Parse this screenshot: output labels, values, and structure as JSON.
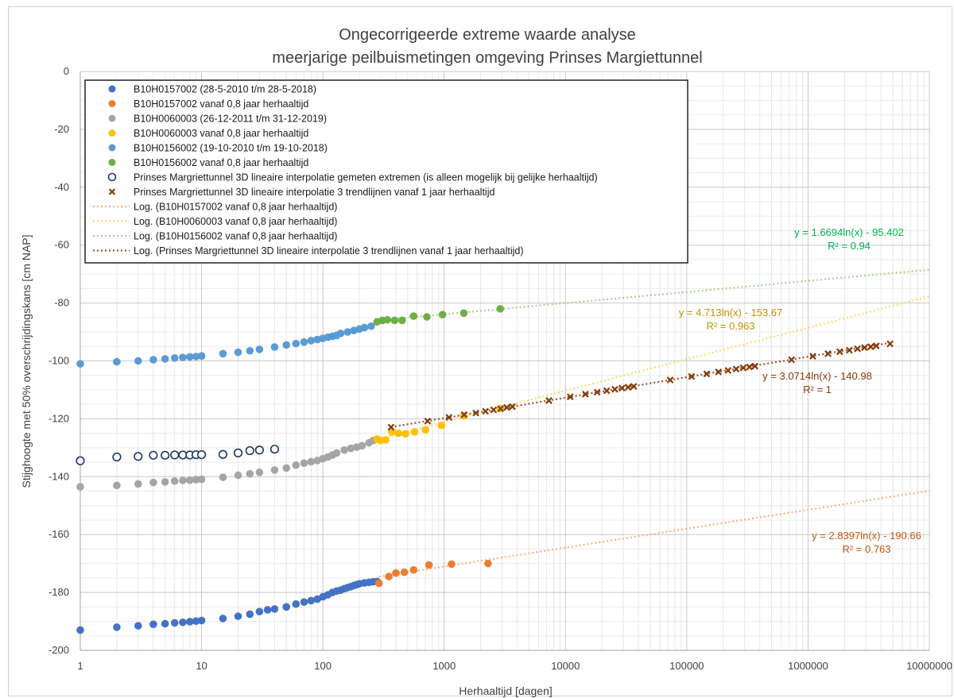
{
  "chart_data": {
    "type": "scatter",
    "title": [
      "Ongecorrigeerde extreme waarde analyse",
      "meerjarige peilbuismetingen omgeving Prinses Margiettunnel"
    ],
    "xlabel": "Herhaaltijd [dagen]",
    "ylabel": "Stijghoogte met 50% overschrijdingskans [cm NAP]",
    "x_scale": "log",
    "xlim": [
      1,
      10000000
    ],
    "ylim": [
      -200,
      0
    ],
    "x_ticks": [
      1,
      10,
      100,
      1000,
      10000,
      100000,
      1000000,
      10000000
    ],
    "x_tick_labels": [
      "1",
      "10",
      "100",
      "1000",
      "10000",
      "100000",
      "1000000",
      "10000000"
    ],
    "y_ticks": [
      0,
      -20,
      -40,
      -60,
      -80,
      -100,
      -120,
      -140,
      -160,
      -180,
      -200
    ],
    "y_tick_labels": [
      "0",
      "-20",
      "-40",
      "-60",
      "-80",
      "-100",
      "-120",
      "-140",
      "-160",
      "-180",
      "-200"
    ],
    "grid": true,
    "legend_position": "top-left",
    "series": [
      {
        "name": "B10H0157002  (28-5-2010 t/m 28-5-2018)",
        "marker": "filled-circle",
        "color": "#4472C4",
        "x": [
          1,
          2,
          3,
          4,
          5,
          6,
          7,
          8,
          9,
          10,
          15,
          20,
          25,
          30,
          35,
          40,
          50,
          60,
          70,
          80,
          90,
          100,
          110,
          120,
          130,
          140,
          150,
          160,
          170,
          180,
          190,
          200,
          220,
          240,
          260,
          280
        ],
        "y": [
          -193,
          -192,
          -191.5,
          -191,
          -190.8,
          -190.5,
          -190.3,
          -190.1,
          -189.9,
          -189.7,
          -189,
          -188.2,
          -187.5,
          -186.6,
          -186,
          -185.7,
          -185,
          -184,
          -183.3,
          -182.8,
          -182.3,
          -181.5,
          -180.8,
          -180,
          -179.5,
          -179.2,
          -178.7,
          -178.3,
          -178,
          -177.6,
          -177.3,
          -177,
          -176.7,
          -176.5,
          -176.3,
          -176.2
        ]
      },
      {
        "name": "B10H0157002 vanaf 0,8 jaar herhaaltijd",
        "marker": "filled-circle",
        "color": "#ED7D31",
        "x": [
          290,
          350,
          400,
          470,
          560,
          750,
          1150,
          2300
        ],
        "y": [
          -176.8,
          -174.5,
          -173.3,
          -173,
          -172.2,
          -170.5,
          -170.2,
          -170
        ]
      },
      {
        "name": "B10H0060003  (26-12-2011 t/m 31-12-2019)",
        "marker": "filled-circle",
        "color": "#A5A5A5",
        "x": [
          1,
          2,
          3,
          4,
          5,
          6,
          7,
          8,
          9,
          10,
          15,
          20,
          25,
          30,
          40,
          50,
          60,
          70,
          80,
          90,
          100,
          110,
          120,
          130,
          150,
          170,
          190,
          210,
          240,
          260
        ],
        "y": [
          -143.5,
          -143,
          -142.5,
          -142,
          -141.8,
          -141.5,
          -141.3,
          -141.2,
          -141,
          -140.9,
          -140.2,
          -139.5,
          -139,
          -138.5,
          -137.7,
          -137,
          -136,
          -135.3,
          -134.8,
          -134.4,
          -133.8,
          -133.2,
          -132.5,
          -131.8,
          -130.8,
          -130.2,
          -129.8,
          -129.3,
          -128.3,
          -127.5
        ]
      },
      {
        "name": "B10H0060003 vanaf 0,8 jaar herhaaltijd",
        "marker": "filled-circle",
        "color": "#FFC000",
        "x": [
          280,
          300,
          330,
          370,
          420,
          480,
          570,
          700,
          950,
          1450,
          2900
        ],
        "y": [
          -127,
          -127.5,
          -127.3,
          -124.5,
          -125,
          -125.2,
          -124.5,
          -123.8,
          -122.3,
          -119,
          -116.5
        ]
      },
      {
        "name": "B10H0156002  (19-10-2010 t/m 19-10-2018)",
        "marker": "filled-circle",
        "color": "#5B9BD5",
        "x": [
          1,
          2,
          3,
          4,
          5,
          6,
          7,
          8,
          9,
          10,
          15,
          20,
          25,
          30,
          40,
          50,
          60,
          70,
          80,
          90,
          100,
          110,
          120,
          130,
          140,
          160,
          180,
          200,
          220,
          250
        ],
        "y": [
          -101,
          -100.3,
          -100,
          -99.6,
          -99.3,
          -99,
          -98.8,
          -98.6,
          -98.5,
          -98.3,
          -97.5,
          -97,
          -96.5,
          -96,
          -95.2,
          -94.5,
          -94,
          -93.5,
          -93,
          -92.6,
          -92.2,
          -91.8,
          -91.5,
          -91.2,
          -90.5,
          -90,
          -89.5,
          -89,
          -88.5,
          -88
        ]
      },
      {
        "name": "B10H0156002 vanaf 0,8 jaar herhaaltijd",
        "marker": "filled-circle",
        "color": "#70AD47",
        "x": [
          280,
          310,
          340,
          390,
          450,
          560,
          720,
          970,
          1450,
          2900
        ],
        "y": [
          -86.5,
          -86,
          -85.8,
          -86,
          -86,
          -84.5,
          -84.8,
          -84,
          -83.5,
          -82
        ]
      },
      {
        "name": "Prinses Margriettunnel 3D lineaire interpolatie gemeten extremen (is alleen mogelijk bij gelijke herhaaltijd)",
        "marker": "open-circle",
        "color": "#1F3864",
        "x": [
          1,
          2,
          3,
          4,
          5,
          6,
          7,
          8,
          9,
          10,
          15,
          20,
          25,
          30,
          40
        ],
        "y": [
          -134.5,
          -133.2,
          -133,
          -132.6,
          -132.6,
          -132.5,
          -132.5,
          -132.5,
          -132.4,
          -132.4,
          -132.3,
          -131.8,
          -131,
          -130.8,
          -130.5
        ]
      },
      {
        "name": "Prinses Margriettunnel 3D lineaire interpolatie 3 trendlijnen vanaf 1 jaar herhaaltijd",
        "marker": "x-cross",
        "color": "#843C0C",
        "x": [
          365,
          730,
          1095,
          1460,
          1825,
          2190,
          2555,
          2920,
          3285,
          3650,
          7300,
          10950,
          14600,
          18250,
          21900,
          25550,
          29200,
          32850,
          36500,
          73000,
          109500,
          146000,
          182500,
          219000,
          255500,
          292000,
          328500,
          365000,
          730000,
          1095000,
          1460000,
          1825000,
          2190000,
          2555000,
          2920000,
          3285000,
          3650000,
          4745000
        ],
        "y": [
          -122.9,
          -120.8,
          -119.5,
          -118.6,
          -118,
          -117.4,
          -116.9,
          -116.5,
          -116.1,
          -115.8,
          -113.7,
          -112.4,
          -111.5,
          -110.8,
          -110.3,
          -109.8,
          -109.4,
          -109.1,
          -108.8,
          -106.6,
          -105.4,
          -104.5,
          -103.8,
          -103.3,
          -102.8,
          -102.4,
          -102.1,
          -101.8,
          -99.6,
          -98.4,
          -97.5,
          -96.8,
          -96.3,
          -95.8,
          -95.4,
          -95.1,
          -94.8,
          -94.1
        ]
      }
    ],
    "trendlines": [
      {
        "name": "Log. (B10H0157002 vanaf 0,8 jaar herhaaltijd)",
        "type": "logarithmic",
        "a": 2.8397,
        "b": -190.66,
        "x_start": 290,
        "x_end": 10000000,
        "color": "#F4B183",
        "equation": "y = 2.8397ln(x) - 190.66",
        "r2": "R² = 0.763",
        "label_color": "#C55A11"
      },
      {
        "name": "Log. (B10H0060003 vanaf 0,8 jaar herhaaltijd)",
        "type": "logarithmic",
        "a": 4.713,
        "b": -153.67,
        "x_start": 280,
        "x_end": 10000000,
        "color": "#FFD966",
        "equation": "y = 4.713ln(x) - 153.67",
        "r2": "R² = 0.963",
        "label_color": "#BF9000"
      },
      {
        "name": "Log. (B10H0156002 vanaf 0,8 jaar herhaaltijd)",
        "type": "logarithmic",
        "a": 1.6694,
        "b": -95.402,
        "x_start": 280,
        "x_end": 10000000,
        "color": "#A9D18E",
        "equation": "y = 1.6694ln(x) - 95.402",
        "r2": "R² = 0.94",
        "label_color": "#00B050"
      },
      {
        "name": "Log. (Prinses Margriettunnel 3D lineaire interpolatie 3 trendlijnen vanaf 1 jaar herhaaltijd)",
        "type": "logarithmic",
        "a": 3.0714,
        "b": -140.98,
        "x_start": 365,
        "x_end": 4745000,
        "color": "#A0522D",
        "equation": "y = 3.0714ln(x) - 140.98",
        "r2": "R² = 1",
        "label_color": "#843C0C"
      }
    ]
  }
}
